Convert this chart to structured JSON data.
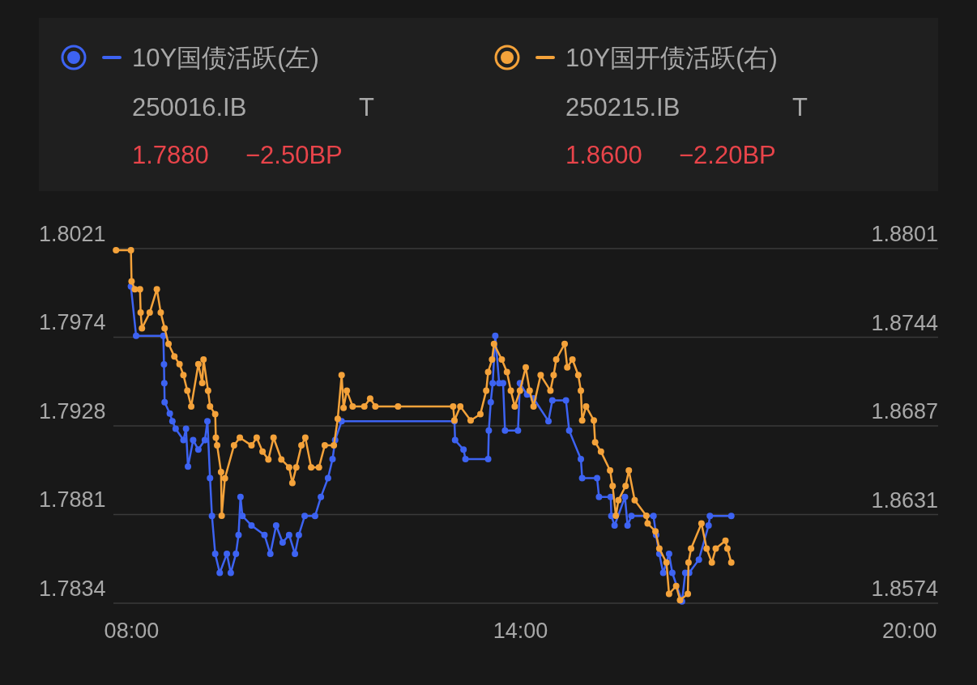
{
  "chart_data": {
    "type": "line",
    "legend": "top",
    "grid": "y",
    "marker": "circle",
    "line_style": "solid",
    "xlim": [
      7.72,
      20.44
    ],
    "xticks": [
      {
        "value": 8,
        "label": "08:00"
      },
      {
        "value": 14,
        "label": "14:00"
      },
      {
        "value": 20,
        "label": "20:00"
      }
    ],
    "ylim": [
      1.7834,
      1.8021
    ],
    "yticks": [
      1.7834,
      {
        "value": 1.78808,
        "label": "1.7881"
      },
      {
        "value": 1.79275,
        "label": "1.7928"
      },
      {
        "value": 1.79743,
        "label": "1.7974"
      },
      1.8021
    ],
    "y2lim": [
      1.8574,
      1.8801
    ],
    "y2ticks": [
      1.8574,
      {
        "value": 1.863075,
        "label": "1.8631"
      },
      {
        "value": 1.86875,
        "label": "1.8687"
      },
      {
        "value": 1.874425,
        "label": "1.8744"
      },
      1.8801
    ],
    "annotations": [
      "250016.IB",
      "T",
      "1.7880",
      "−2.50BP",
      "250215.IB",
      "T",
      "1.8600",
      "−2.20BP"
    ],
    "series": [
      {
        "name": "10Y国债活跃(左)",
        "color": "#3d63f2",
        "axis": "y",
        "x": [
          7.99,
          8.07,
          8.49,
          8.5,
          8.505,
          8.51,
          8.59,
          8.63,
          8.68,
          8.8,
          8.84,
          8.87,
          8.95,
          9.03,
          9.13,
          9.17,
          9.21,
          9.24,
          9.29,
          9.36,
          9.47,
          9.53,
          9.61,
          9.65,
          9.68,
          9.71,
          9.85,
          10.05,
          10.14,
          10.23,
          10.33,
          10.43,
          10.52,
          10.58,
          10.67,
          10.83,
          10.92,
          11.03,
          11.1,
          11.14,
          11.24,
          12.98,
          12.99,
          13.12,
          13.15,
          13.5,
          13.51,
          13.54,
          13.57,
          13.61,
          13.67,
          13.73,
          13.76,
          13.96,
          13.99,
          14.1,
          14.2,
          14.43,
          14.49,
          14.7,
          14.75,
          14.93,
          14.95,
          15.18,
          15.21,
          15.39,
          15.4,
          15.45,
          15.61,
          15.65,
          15.71,
          16.05,
          16.09,
          16.14,
          16.2,
          16.29,
          16.34,
          16.49,
          16.54,
          16.6,
          16.75,
          16.9,
          16.92,
          17.25
        ],
        "values": [
          1.8001,
          1.7975,
          1.7975,
          1.796,
          1.795,
          1.794,
          1.7934,
          1.793,
          1.7926,
          1.792,
          1.7926,
          1.7906,
          1.792,
          1.7915,
          1.792,
          1.793,
          1.79,
          1.788,
          1.786,
          1.785,
          1.786,
          1.785,
          1.786,
          1.787,
          1.789,
          1.788,
          1.7875,
          1.787,
          1.786,
          1.7875,
          1.7866,
          1.787,
          1.786,
          1.787,
          1.788,
          1.788,
          1.789,
          1.79,
          1.791,
          1.792,
          1.793,
          1.793,
          1.792,
          1.7915,
          1.791,
          1.791,
          1.7925,
          1.794,
          1.795,
          1.7975,
          1.795,
          1.795,
          1.7925,
          1.7925,
          1.795,
          1.7944,
          1.7942,
          1.793,
          1.7941,
          1.7941,
          1.7925,
          1.791,
          1.79,
          1.79,
          1.789,
          1.789,
          1.788,
          1.7875,
          1.789,
          1.7875,
          1.788,
          1.788,
          1.787,
          1.786,
          1.785,
          1.786,
          1.785,
          1.7835,
          1.785,
          1.785,
          1.7857,
          1.7875,
          1.788,
          1.788
        ]
      },
      {
        "name": "10Y国开债活跃(右)",
        "color": "#f4a23a",
        "axis": "y2",
        "x": [
          7.76,
          7.99,
          8.0,
          8.05,
          8.13,
          8.14,
          8.16,
          8.28,
          8.39,
          8.45,
          8.51,
          8.57,
          8.66,
          8.74,
          8.8,
          8.86,
          8.92,
          9.03,
          9.09,
          9.11,
          9.18,
          9.21,
          9.29,
          9.3,
          9.32,
          9.38,
          9.39,
          9.44,
          9.58,
          9.67,
          9.85,
          9.93,
          10.02,
          10.11,
          10.19,
          10.31,
          10.43,
          10.48,
          10.54,
          10.62,
          10.68,
          10.77,
          10.89,
          10.98,
          11.12,
          11.18,
          11.24,
          11.27,
          11.32,
          11.41,
          11.59,
          11.68,
          11.76,
          12.11,
          12.96,
          12.98,
          13.07,
          13.23,
          13.38,
          13.47,
          13.5,
          13.56,
          13.59,
          13.71,
          13.79,
          13.85,
          13.91,
          13.99,
          14.08,
          14.14,
          14.2,
          14.31,
          14.46,
          14.51,
          14.55,
          14.68,
          14.72,
          14.8,
          14.89,
          14.93,
          14.95,
          15.01,
          15.13,
          15.15,
          15.24,
          15.38,
          15.42,
          15.47,
          15.51,
          15.62,
          15.67,
          15.76,
          15.94,
          15.96,
          16.08,
          16.14,
          16.25,
          16.29,
          16.4,
          16.46,
          16.58,
          16.59,
          16.63,
          16.79,
          16.87,
          16.95,
          17.01,
          17.16,
          17.19,
          17.25
        ],
        "values": [
          1.88,
          1.88,
          1.878,
          1.8775,
          1.8775,
          1.876,
          1.875,
          1.876,
          1.8775,
          1.876,
          1.875,
          1.874,
          1.8732,
          1.8727,
          1.872,
          1.871,
          1.87,
          1.8727,
          1.8715,
          1.873,
          1.871,
          1.87,
          1.8695,
          1.868,
          1.8675,
          1.8658,
          1.863,
          1.8654,
          1.8675,
          1.868,
          1.8675,
          1.868,
          1.8671,
          1.8666,
          1.868,
          1.8666,
          1.8661,
          1.8651,
          1.8661,
          1.8675,
          1.868,
          1.8661,
          1.8661,
          1.8675,
          1.8675,
          1.8692,
          1.872,
          1.8699,
          1.871,
          1.87,
          1.87,
          1.8705,
          1.87,
          1.87,
          1.87,
          1.8691,
          1.87,
          1.8691,
          1.8695,
          1.871,
          1.8722,
          1.873,
          1.874,
          1.873,
          1.8722,
          1.871,
          1.87,
          1.871,
          1.8725,
          1.871,
          1.87,
          1.872,
          1.871,
          1.872,
          1.873,
          1.874,
          1.8725,
          1.873,
          1.872,
          1.871,
          1.8691,
          1.87,
          1.8691,
          1.8677,
          1.8671,
          1.8659,
          1.8649,
          1.863,
          1.864,
          1.8649,
          1.8659,
          1.864,
          1.863,
          1.8625,
          1.862,
          1.8609,
          1.86,
          1.858,
          1.8585,
          1.8576,
          1.858,
          1.86,
          1.8609,
          1.8625,
          1.8609,
          1.86,
          1.8609,
          1.8614,
          1.8609,
          1.86
        ]
      }
    ]
  }
}
